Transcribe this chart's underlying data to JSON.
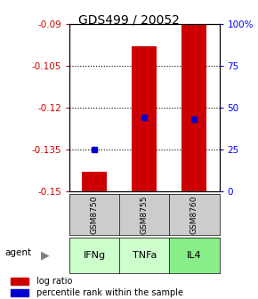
{
  "title": "GDS499 / 20052",
  "samples": [
    "GSM8750",
    "GSM8755",
    "GSM8760"
  ],
  "agents": [
    "IFNg",
    "TNFa",
    "IL4"
  ],
  "log_ratios": [
    -0.143,
    -0.098,
    -0.09
  ],
  "percentile_ranks": [
    25,
    44,
    43
  ],
  "ylim": [
    -0.15,
    -0.09
  ],
  "yticks": [
    -0.09,
    -0.105,
    -0.12,
    -0.135,
    -0.15
  ],
  "ytick_labels": [
    "-0.09",
    "-0.105",
    "-0.12",
    "-0.135",
    "-0.15"
  ],
  "right_yticks": [
    0,
    25,
    50,
    75,
    100
  ],
  "right_ytick_labels": [
    "0",
    "25",
    "50",
    "75",
    "100%"
  ],
  "bar_color": "#cc0000",
  "dot_color": "#0000cc",
  "agent_colors": [
    "#ccffcc",
    "#ccffcc",
    "#88ee88"
  ],
  "sample_box_color": "#cccccc",
  "left_tick_color": "#cc0000",
  "right_tick_color": "#0000ff",
  "legend_items": [
    "log ratio",
    "percentile rank within the sample"
  ],
  "bar_width": 0.5,
  "figsize": [
    2.9,
    3.36
  ],
  "dpi": 100
}
